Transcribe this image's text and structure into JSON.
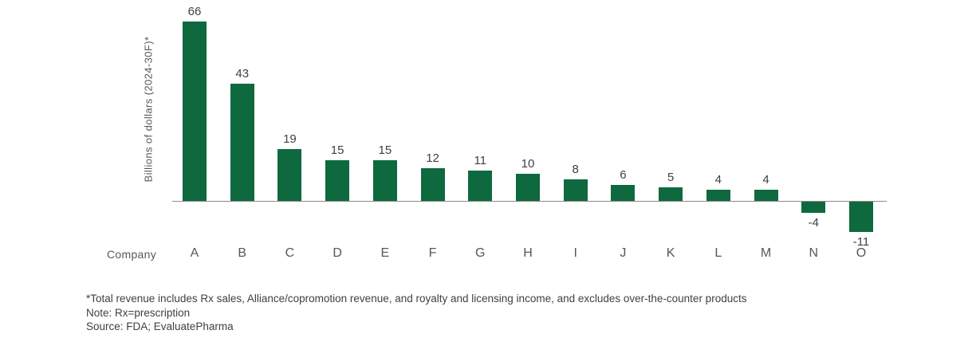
{
  "chart_data": {
    "type": "bar",
    "title": "",
    "xlabel": "Company",
    "ylabel": "Billions of dollars (2024-30F)*",
    "categories": [
      "A",
      "B",
      "C",
      "D",
      "E",
      "F",
      "G",
      "H",
      "I",
      "J",
      "K",
      "L",
      "M",
      "N",
      "O"
    ],
    "values": [
      66,
      43,
      19,
      15,
      15,
      12,
      11,
      10,
      8,
      6,
      5,
      4,
      4,
      -4,
      -11
    ],
    "bar_color": "#0F693E",
    "ylim": [
      -15,
      70
    ],
    "grid": false,
    "y_axis_ticks_visible": false,
    "legend_position": "none",
    "data_labels": true,
    "negative_values_labeled_below": true
  },
  "footnotes": {
    "line1": "*Total revenue includes Rx sales, Alliance/copromotion revenue, and royalty and licensing income, and excludes over-the-counter products",
    "line2": "Note: Rx=prescription",
    "line3": "Source: FDA; EvaluatePharma"
  }
}
